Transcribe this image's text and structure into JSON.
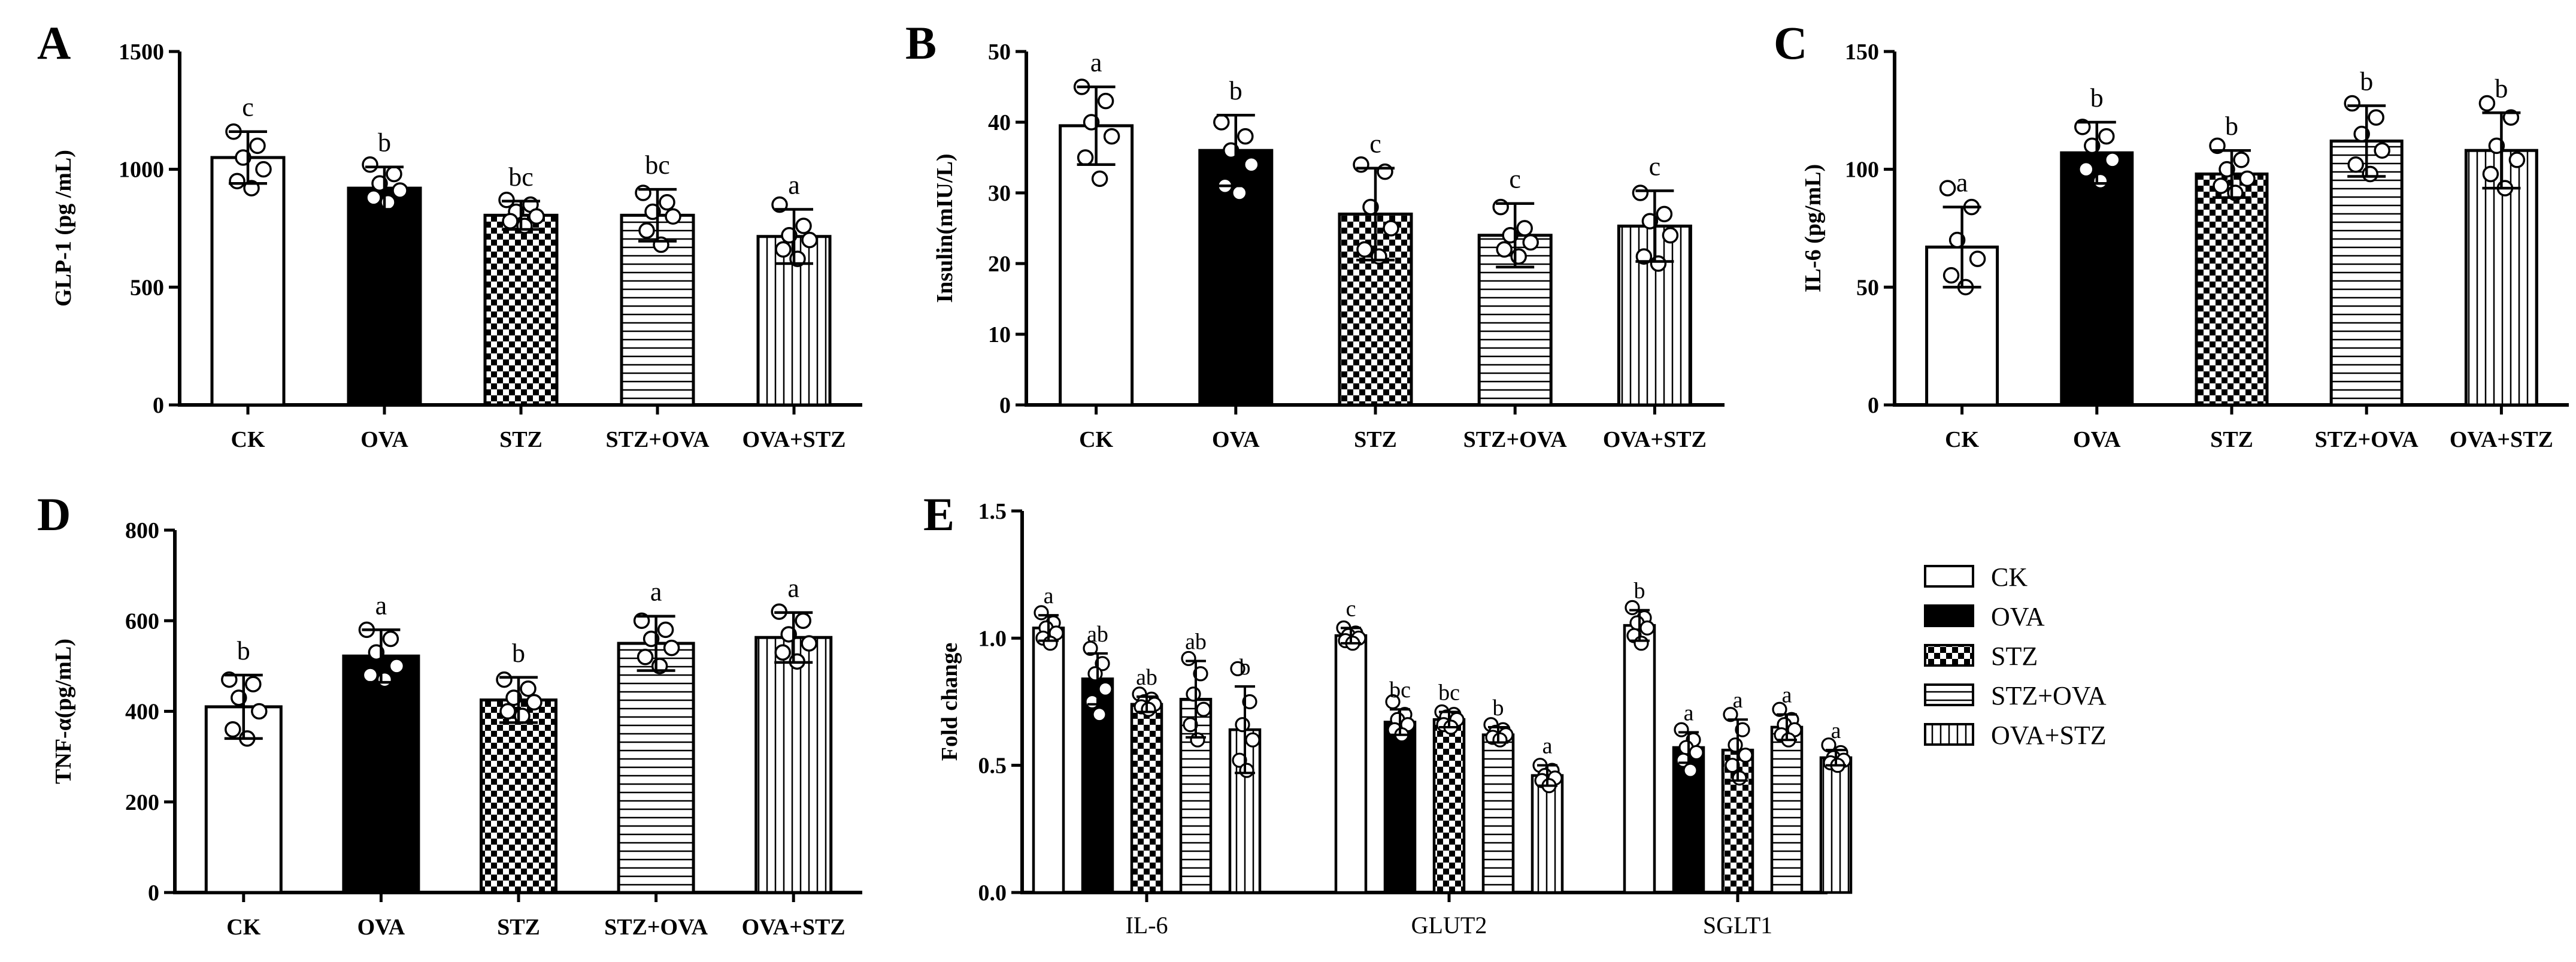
{
  "colors": {
    "ink": "#000000",
    "bg": "#ffffff"
  },
  "legend": {
    "items": [
      {
        "label": "CK",
        "pattern": "white"
      },
      {
        "label": "OVA",
        "pattern": "black"
      },
      {
        "label": "STZ",
        "pattern": "checker"
      },
      {
        "label": "STZ+OVA",
        "pattern": "hlines"
      },
      {
        "label": "OVA+STZ",
        "pattern": "vlines"
      }
    ]
  },
  "chart_data": [
    {
      "panel": "A",
      "type": "bar",
      "ylabel": "GLP-1 (pg /mL)",
      "categories": [
        "CK",
        "OVA",
        "STZ",
        "STZ+OVA",
        "OVA+STZ"
      ],
      "patterns": [
        "white",
        "black",
        "checker",
        "hlines",
        "vlines"
      ],
      "values": [
        1050,
        920,
        805,
        805,
        715
      ],
      "errors": [
        110,
        90,
        60,
        110,
        115
      ],
      "letters": [
        "c",
        "b",
        "bc",
        "bc",
        "a"
      ],
      "points": [
        [
          1160,
          1100,
          1050,
          1000,
          950,
          920
        ],
        [
          1020,
          980,
          940,
          910,
          880,
          860
        ],
        [
          870,
          850,
          820,
          800,
          780,
          760
        ],
        [
          900,
          860,
          820,
          800,
          740,
          680
        ],
        [
          850,
          760,
          720,
          700,
          660,
          620
        ]
      ],
      "ylim": [
        0,
        1500
      ],
      "yticks": [
        0,
        500,
        1000,
        1500
      ]
    },
    {
      "panel": "B",
      "type": "bar",
      "ylabel": "Insulin(mIU/L)",
      "categories": [
        "CK",
        "OVA",
        "STZ",
        "STZ+OVA",
        "OVA+STZ"
      ],
      "patterns": [
        "white",
        "black",
        "checker",
        "hlines",
        "vlines"
      ],
      "values": [
        39.5,
        36,
        27,
        24,
        25.3
      ],
      "errors": [
        5.5,
        5,
        6.5,
        4.5,
        5
      ],
      "letters": [
        "a",
        "b",
        "c",
        "c",
        "c"
      ],
      "points": [
        [
          45,
          43,
          40,
          38,
          35,
          32
        ],
        [
          40,
          38,
          36,
          34,
          31,
          30
        ],
        [
          34,
          33,
          28,
          25,
          22,
          21
        ],
        [
          28,
          25,
          24,
          23,
          22,
          21
        ],
        [
          30,
          27,
          26,
          24,
          21,
          20
        ]
      ],
      "ylim": [
        0,
        50
      ],
      "yticks": [
        0,
        10,
        20,
        30,
        40,
        50
      ]
    },
    {
      "panel": "C",
      "type": "bar",
      "ylabel": "IL-6 (pg/mL)",
      "categories": [
        "CK",
        "OVA",
        "STZ",
        "STZ+OVA",
        "OVA+STZ"
      ],
      "patterns": [
        "white",
        "black",
        "checker",
        "hlines",
        "vlines"
      ],
      "values": [
        67,
        107,
        98,
        112,
        108
      ],
      "errors": [
        17,
        13,
        10,
        15,
        16
      ],
      "letters": [
        "a",
        "b",
        "b",
        "b",
        "b"
      ],
      "points": [
        [
          92,
          84,
          70,
          62,
          55,
          50
        ],
        [
          118,
          114,
          110,
          104,
          100,
          95
        ],
        [
          110,
          104,
          100,
          96,
          93,
          90
        ],
        [
          128,
          122,
          115,
          108,
          102,
          98
        ],
        [
          128,
          122,
          110,
          104,
          98,
          92
        ]
      ],
      "ylim": [
        0,
        150
      ],
      "yticks": [
        0,
        50,
        100,
        150
      ]
    },
    {
      "panel": "D",
      "type": "bar",
      "ylabel": "TNF-α(pg/mL)",
      "categories": [
        "CK",
        "OVA",
        "STZ",
        "STZ+OVA",
        "OVA+STZ"
      ],
      "patterns": [
        "white",
        "black",
        "checker",
        "hlines",
        "vlines"
      ],
      "values": [
        410,
        522,
        425,
        550,
        563
      ],
      "errors": [
        70,
        58,
        50,
        60,
        55
      ],
      "letters": [
        "b",
        "a",
        "b",
        "a",
        "a"
      ],
      "points": [
        [
          470,
          460,
          430,
          400,
          360,
          340
        ],
        [
          580,
          560,
          530,
          500,
          480,
          470
        ],
        [
          470,
          450,
          430,
          420,
          400,
          390
        ],
        [
          600,
          580,
          560,
          540,
          520,
          500
        ],
        [
          620,
          600,
          570,
          550,
          530,
          510
        ]
      ],
      "ylim": [
        0,
        800
      ],
      "yticks": [
        0,
        200,
        400,
        600,
        800
      ]
    },
    {
      "panel": "E",
      "type": "bar",
      "ylabel": "Fold change",
      "groups": [
        "IL-6",
        "GLUT2",
        "SGLT1"
      ],
      "series": [
        {
          "name": "CK",
          "pattern": "white",
          "values": [
            1.04,
            1.01,
            1.05
          ],
          "errors": [
            0.05,
            0.03,
            0.06
          ],
          "letters": [
            "a",
            "c",
            "b"
          ],
          "points": [
            [
              1.1,
              1.06,
              1.04,
              1.02,
              1.0,
              0.98
            ],
            [
              1.04,
              1.02,
              1.01,
              1.0,
              0.99,
              0.98
            ],
            [
              1.12,
              1.08,
              1.06,
              1.04,
              1.01,
              0.98
            ]
          ]
        },
        {
          "name": "OVA",
          "pattern": "black",
          "values": [
            0.84,
            0.67,
            0.57
          ],
          "errors": [
            0.1,
            0.05,
            0.06
          ],
          "letters": [
            "ab",
            "bc",
            "a"
          ],
          "points": [
            [
              0.96,
              0.9,
              0.86,
              0.8,
              0.75,
              0.7
            ],
            [
              0.75,
              0.7,
              0.68,
              0.66,
              0.64,
              0.62
            ],
            [
              0.64,
              0.6,
              0.57,
              0.55,
              0.52,
              0.48
            ]
          ]
        },
        {
          "name": "STZ",
          "pattern": "checker",
          "values": [
            0.74,
            0.68,
            0.56
          ],
          "errors": [
            0.03,
            0.03,
            0.12
          ],
          "letters": [
            "ab",
            "bc",
            "a"
          ],
          "points": [
            [
              0.78,
              0.76,
              0.75,
              0.74,
              0.73,
              0.72
            ],
            [
              0.71,
              0.7,
              0.69,
              0.68,
              0.66,
              0.65
            ],
            [
              0.7,
              0.64,
              0.58,
              0.54,
              0.5,
              0.45
            ]
          ]
        },
        {
          "name": "STZ+OVA",
          "pattern": "hlines",
          "values": [
            0.76,
            0.62,
            0.65
          ],
          "errors": [
            0.15,
            0.03,
            0.05
          ],
          "letters": [
            "ab",
            "b",
            "a"
          ],
          "points": [
            [
              0.92,
              0.86,
              0.78,
              0.72,
              0.66,
              0.6
            ],
            [
              0.66,
              0.64,
              0.63,
              0.62,
              0.61,
              0.6
            ],
            [
              0.72,
              0.68,
              0.66,
              0.64,
              0.62,
              0.6
            ]
          ]
        },
        {
          "name": "OVA+STZ",
          "pattern": "vlines",
          "values": [
            0.64,
            0.46,
            0.53
          ],
          "errors": [
            0.17,
            0.04,
            0.03
          ],
          "letters": [
            "b",
            "a",
            "a"
          ],
          "points": [
            [
              0.88,
              0.75,
              0.66,
              0.6,
              0.52,
              0.48
            ],
            [
              0.5,
              0.48,
              0.46,
              0.45,
              0.44,
              0.42
            ],
            [
              0.58,
              0.55,
              0.53,
              0.52,
              0.51,
              0.5
            ]
          ]
        }
      ],
      "ylim": [
        0,
        1.5
      ],
      "yticks": [
        "0.0",
        "0.5",
        "1.0",
        "1.5"
      ]
    }
  ]
}
